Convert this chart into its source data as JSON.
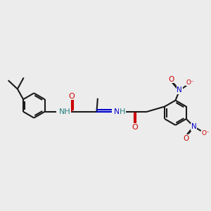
{
  "bg_color": "#ececec",
  "bond_color": "#1a1a1a",
  "oxygen_color": "#cc0000",
  "nitrogen_color": "#0000cc",
  "hydrogen_color": "#2a8080",
  "bond_lw": 1.5,
  "ring_r": 0.6,
  "font_size": 8.0,
  "fig_w": 3.0,
  "fig_h": 3.0,
  "dpi": 100,
  "xlim": [
    0,
    10
  ],
  "ylim": [
    1.5,
    8.5
  ]
}
